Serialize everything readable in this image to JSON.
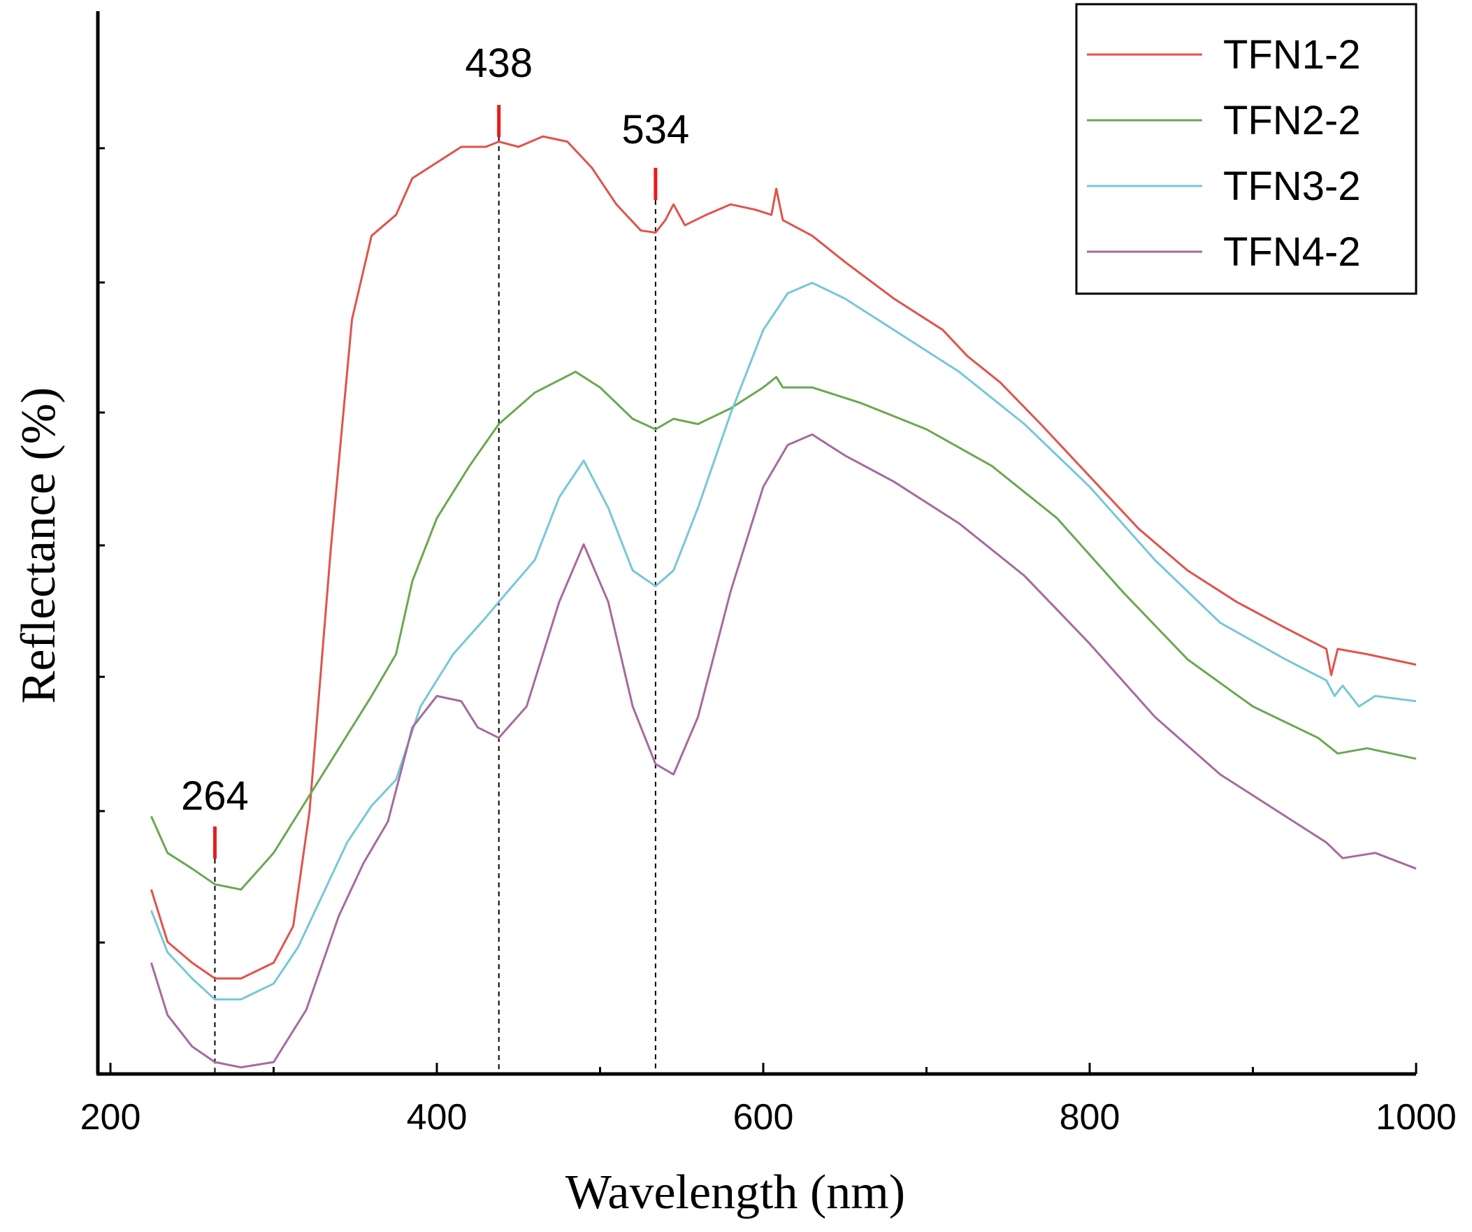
{
  "chart_data": {
    "type": "line",
    "title": "",
    "xlabel": "Wavelength (nm)",
    "ylabel": "Reflectance (%)",
    "xlim": [
      200,
      1000
    ],
    "ylim": [
      0,
      100
    ],
    "x_ticks": [
      200,
      400,
      600,
      800,
      1000
    ],
    "y_ticks_labeled": false,
    "grid": false,
    "legend_position": "top-right",
    "series": [
      {
        "name": "TFN1-2",
        "color": "#e0534b",
        "points": [
          [
            225,
            17.5
          ],
          [
            235,
            12.5
          ],
          [
            250,
            10.5
          ],
          [
            264,
            9.0
          ],
          [
            280,
            9.0
          ],
          [
            300,
            10.5
          ],
          [
            312,
            14
          ],
          [
            322,
            25
          ],
          [
            335,
            50
          ],
          [
            348,
            72
          ],
          [
            360,
            80
          ],
          [
            375,
            82
          ],
          [
            385,
            85.5
          ],
          [
            400,
            87
          ],
          [
            415,
            88.5
          ],
          [
            430,
            88.5
          ],
          [
            438,
            89
          ],
          [
            450,
            88.5
          ],
          [
            465,
            89.5
          ],
          [
            480,
            89
          ],
          [
            495,
            86.5
          ],
          [
            510,
            83
          ],
          [
            525,
            80.5
          ],
          [
            534,
            80.3
          ],
          [
            540,
            81.5
          ],
          [
            545,
            83
          ],
          [
            552,
            81
          ],
          [
            565,
            82
          ],
          [
            580,
            83
          ],
          [
            595,
            82.5
          ],
          [
            605,
            82
          ],
          [
            608,
            84.5
          ],
          [
            612,
            81.5
          ],
          [
            630,
            80
          ],
          [
            650,
            77.5
          ],
          [
            680,
            74
          ],
          [
            710,
            71
          ],
          [
            725,
            68.5
          ],
          [
            745,
            66
          ],
          [
            770,
            62
          ],
          [
            800,
            57
          ],
          [
            830,
            52
          ],
          [
            860,
            48
          ],
          [
            890,
            45
          ],
          [
            920,
            42.5
          ],
          [
            945,
            40.5
          ],
          [
            948,
            38
          ],
          [
            952,
            40.5
          ],
          [
            970,
            40
          ],
          [
            1000,
            39
          ]
        ]
      },
      {
        "name": "TFN2-2",
        "color": "#6aa84f",
        "points": [
          [
            225,
            24.5
          ],
          [
            235,
            21
          ],
          [
            250,
            19.5
          ],
          [
            264,
            18.0
          ],
          [
            280,
            17.5
          ],
          [
            300,
            21
          ],
          [
            320,
            26
          ],
          [
            340,
            31
          ],
          [
            360,
            36
          ],
          [
            375,
            40
          ],
          [
            385,
            47
          ],
          [
            400,
            53
          ],
          [
            420,
            58
          ],
          [
            438,
            62
          ],
          [
            460,
            65
          ],
          [
            485,
            67
          ],
          [
            500,
            65.5
          ],
          [
            520,
            62.5
          ],
          [
            534,
            61.5
          ],
          [
            545,
            62.5
          ],
          [
            560,
            62
          ],
          [
            580,
            63.5
          ],
          [
            600,
            65.5
          ],
          [
            608,
            66.5
          ],
          [
            612,
            65.5
          ],
          [
            630,
            65.5
          ],
          [
            660,
            64
          ],
          [
            700,
            61.5
          ],
          [
            740,
            58
          ],
          [
            780,
            53
          ],
          [
            820,
            46
          ],
          [
            860,
            39.5
          ],
          [
            900,
            35
          ],
          [
            940,
            32
          ],
          [
            948,
            31
          ],
          [
            952,
            30.5
          ],
          [
            970,
            31
          ],
          [
            1000,
            30
          ]
        ]
      },
      {
        "name": "TFN3-2",
        "color": "#76c8d6",
        "points": [
          [
            225,
            15.5
          ],
          [
            235,
            11.5
          ],
          [
            250,
            9.0
          ],
          [
            264,
            7.0
          ],
          [
            280,
            7.0
          ],
          [
            300,
            8.5
          ],
          [
            315,
            12
          ],
          [
            330,
            17
          ],
          [
            345,
            22
          ],
          [
            360,
            25.5
          ],
          [
            375,
            28
          ],
          [
            390,
            35
          ],
          [
            410,
            40
          ],
          [
            430,
            43.5
          ],
          [
            438,
            45
          ],
          [
            460,
            49
          ],
          [
            475,
            55
          ],
          [
            490,
            58.5
          ],
          [
            505,
            54
          ],
          [
            520,
            48
          ],
          [
            534,
            46.5
          ],
          [
            545,
            48
          ],
          [
            560,
            54
          ],
          [
            580,
            63
          ],
          [
            600,
            71
          ],
          [
            615,
            74.5
          ],
          [
            630,
            75.5
          ],
          [
            650,
            74
          ],
          [
            680,
            71
          ],
          [
            720,
            67
          ],
          [
            760,
            62
          ],
          [
            800,
            56
          ],
          [
            840,
            49
          ],
          [
            880,
            43
          ],
          [
            920,
            39.5
          ],
          [
            945,
            37.5
          ],
          [
            950,
            36
          ],
          [
            955,
            37
          ],
          [
            965,
            35
          ],
          [
            975,
            36
          ],
          [
            1000,
            35.5
          ]
        ]
      },
      {
        "name": "TFN4-2",
        "color": "#a66a9f",
        "points": [
          [
            225,
            10.5
          ],
          [
            235,
            5.5
          ],
          [
            250,
            2.5
          ],
          [
            264,
            1.0
          ],
          [
            280,
            0.5
          ],
          [
            300,
            1.0
          ],
          [
            320,
            6
          ],
          [
            340,
            15
          ],
          [
            355,
            20
          ],
          [
            370,
            24
          ],
          [
            385,
            33
          ],
          [
            400,
            36
          ],
          [
            415,
            35.5
          ],
          [
            425,
            33
          ],
          [
            438,
            32
          ],
          [
            455,
            35
          ],
          [
            475,
            45
          ],
          [
            490,
            50.5
          ],
          [
            505,
            45
          ],
          [
            520,
            35
          ],
          [
            534,
            29.5
          ],
          [
            545,
            28.5
          ],
          [
            560,
            34
          ],
          [
            580,
            46
          ],
          [
            600,
            56
          ],
          [
            615,
            60
          ],
          [
            630,
            61
          ],
          [
            650,
            59
          ],
          [
            680,
            56.5
          ],
          [
            720,
            52.5
          ],
          [
            760,
            47.5
          ],
          [
            800,
            41
          ],
          [
            840,
            34
          ],
          [
            880,
            28.5
          ],
          [
            920,
            24.5
          ],
          [
            945,
            22
          ],
          [
            955,
            20.5
          ],
          [
            975,
            21
          ],
          [
            1000,
            19.5
          ]
        ]
      }
    ],
    "annotations": [
      {
        "label": "264",
        "x": 264,
        "color": "#e81c1c"
      },
      {
        "label": "438",
        "x": 438,
        "color": "#e81c1c"
      },
      {
        "label": "534",
        "x": 534,
        "color": "#e81c1c"
      }
    ]
  }
}
